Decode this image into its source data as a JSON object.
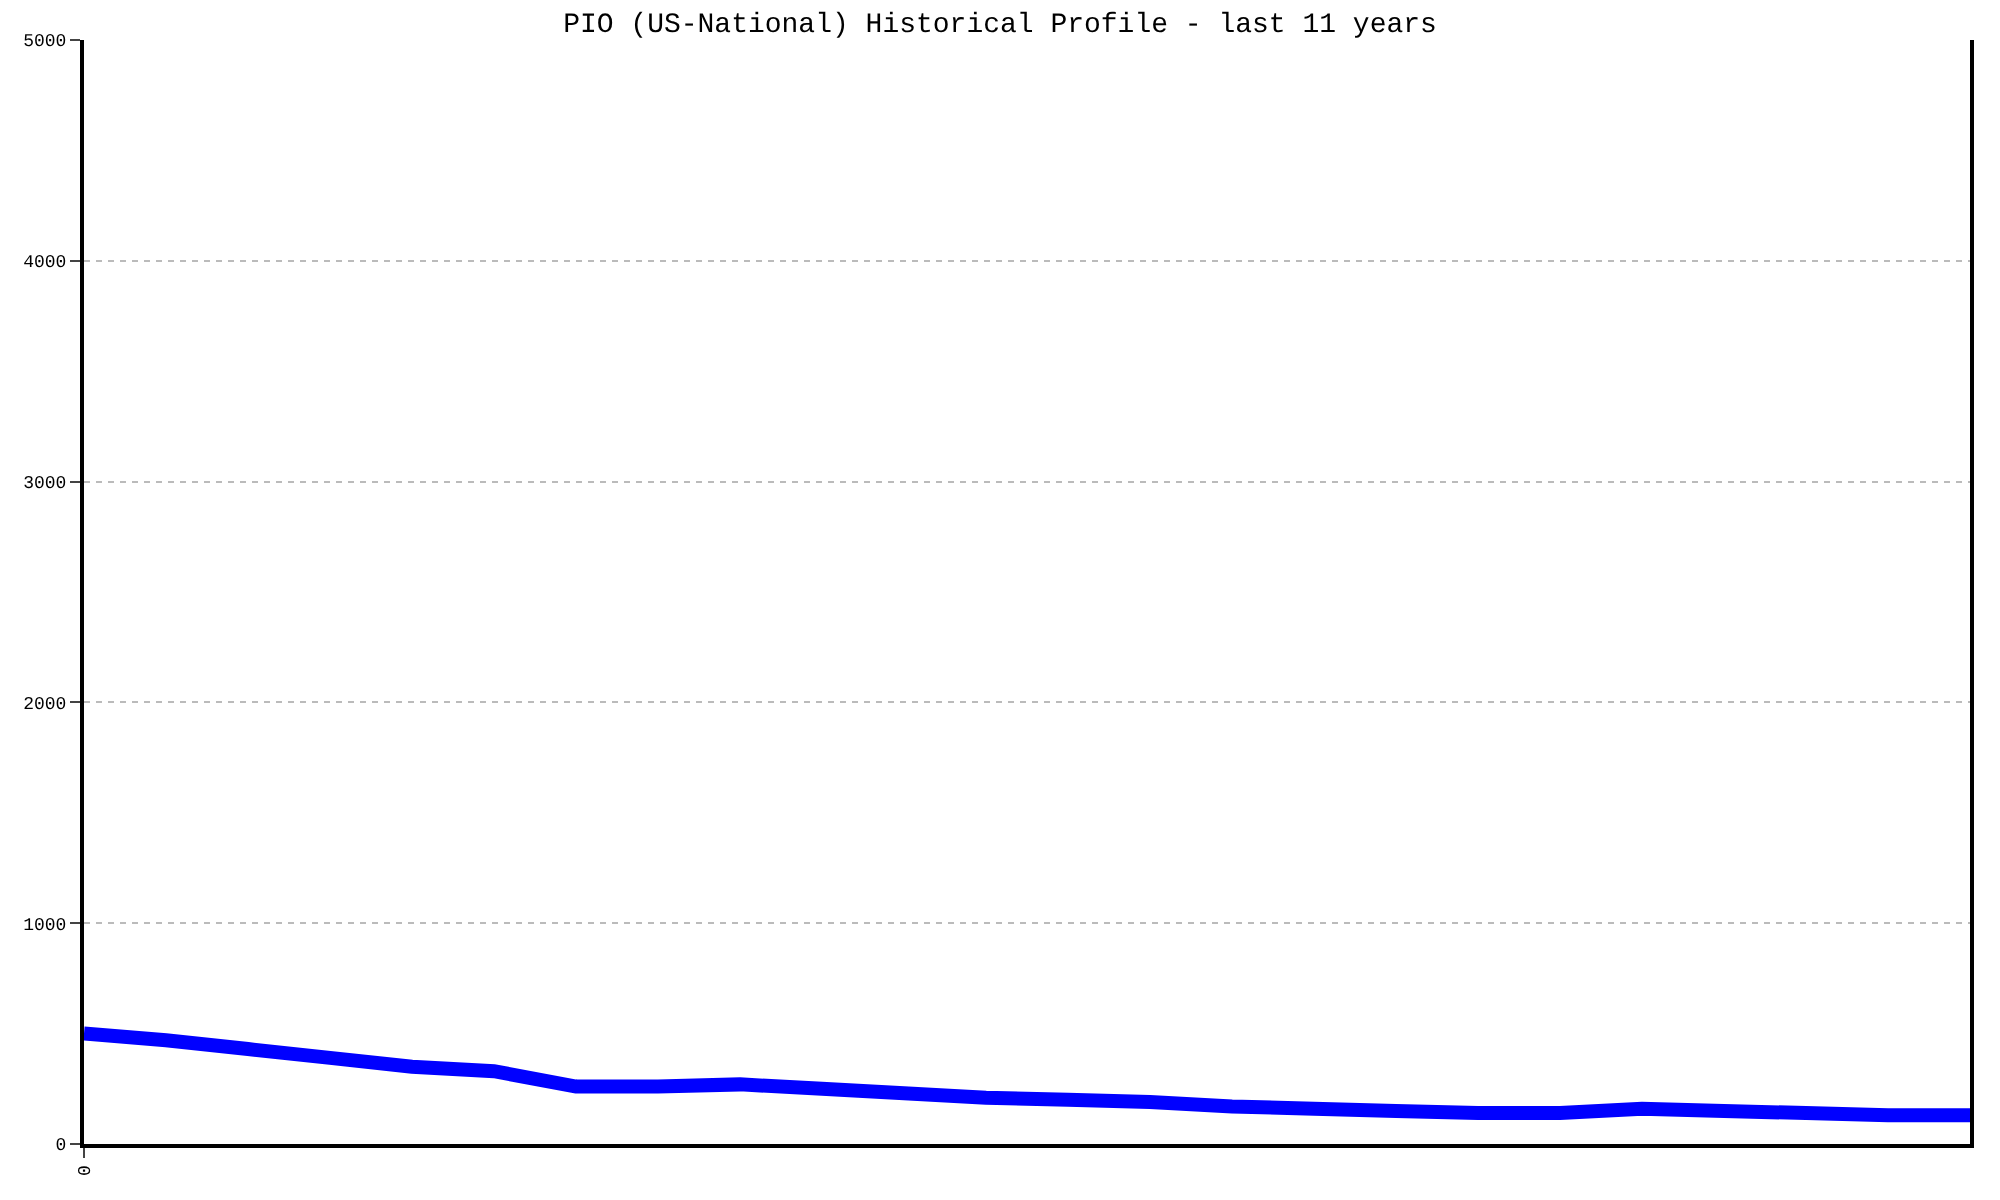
{
  "chart_data": {
    "type": "line",
    "title": "PIO (US-National) Historical Profile - last 11 years",
    "categories": [
      "0",
      null,
      null,
      null,
      null,
      null,
      null,
      null,
      null,
      null,
      null,
      null,
      null,
      null,
      null,
      null,
      null,
      null,
      null,
      null,
      null,
      null,
      null,
      null
    ],
    "series": [
      {
        "color": "#0000ff",
        "values": [
          500,
          470,
          430,
          390,
          350,
          330,
          260,
          260,
          270,
          250,
          230,
          210,
          200,
          190,
          170,
          160,
          150,
          140,
          140,
          160,
          150,
          140,
          130,
          130
        ]
      }
    ],
    "ylim": [
      0,
      5000
    ],
    "yticks": [
      0,
      1000,
      2000,
      3000,
      4000,
      5000
    ],
    "grid": "y",
    "marker": "none",
    "line_style": "solid"
  }
}
